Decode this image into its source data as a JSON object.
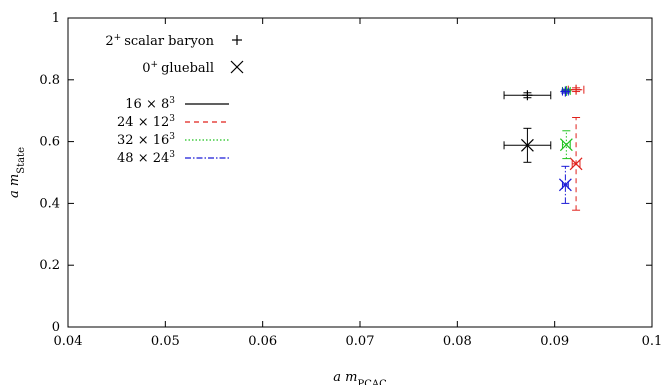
{
  "chart_data": {
    "type": "scatter",
    "xlabel": {
      "text": "a m",
      "sub": "PCAC"
    },
    "ylabel": {
      "text": "a m",
      "sub": "State"
    },
    "xlim": [
      0.04,
      0.1
    ],
    "ylim": [
      0,
      1
    ],
    "xticks": [
      0.04,
      0.05,
      0.06,
      0.07,
      0.08,
      0.09,
      0.1
    ],
    "xtick_labels": [
      "0.04",
      "0.05",
      "0.06",
      "0.07",
      "0.08",
      "0.09",
      "0.1"
    ],
    "yticks": [
      0,
      0.2,
      0.4,
      0.6,
      0.8,
      1
    ],
    "ytick_labels": [
      "0",
      "0.2",
      "0.4",
      "0.6",
      "0.8",
      "1"
    ],
    "grid": false,
    "legend_position": "top-left",
    "marker_legend": [
      {
        "label": "scalar baryon",
        "sup": "+",
        "prefix": "2",
        "marker": "plus"
      },
      {
        "label": "glueball",
        "sup": "+",
        "prefix": "0",
        "marker": "cross"
      }
    ],
    "series": [
      {
        "name": "16 × 8",
        "sup": "3",
        "color": "#000000",
        "dash": "solid",
        "points": [
          {
            "marker": "plus",
            "x": 0.0872,
            "y": 0.75,
            "xerr": 0.0024,
            "yerr": 0.008
          },
          {
            "marker": "cross",
            "x": 0.0872,
            "y": 0.588,
            "xerr": 0.0024,
            "yerr": 0.055
          }
        ]
      },
      {
        "name": "24 × 12",
        "sup": "3",
        "color": "#e0201b",
        "dash": "5,4",
        "points": [
          {
            "marker": "plus",
            "x": 0.0922,
            "y": 0.768,
            "xerr": 0.0008,
            "yerr": 0.006
          },
          {
            "marker": "cross",
            "x": 0.0922,
            "y": 0.528,
            "xerr": 0.0004,
            "yerr": 0.15
          }
        ]
      },
      {
        "name": "32 × 16",
        "sup": "3",
        "color": "#1ec21e",
        "dash": "1.5,2",
        "points": [
          {
            "marker": "plus",
            "x": 0.0912,
            "y": 0.764,
            "xerr": 0.0004,
            "yerr": 0.006
          },
          {
            "marker": "cross",
            "x": 0.0912,
            "y": 0.59,
            "xerr": 0.0004,
            "yerr": 0.045
          }
        ]
      },
      {
        "name": "48 × 24",
        "sup": "3",
        "color": "#1a1ad6",
        "dash": "6,2,1.5,2",
        "points": [
          {
            "marker": "plus",
            "x": 0.0911,
            "y": 0.762,
            "xerr": 0.0003,
            "yerr": 0.005
          },
          {
            "marker": "cross",
            "x": 0.0911,
            "y": 0.46,
            "xerr": 0.0003,
            "yerr": 0.06
          }
        ]
      }
    ]
  }
}
